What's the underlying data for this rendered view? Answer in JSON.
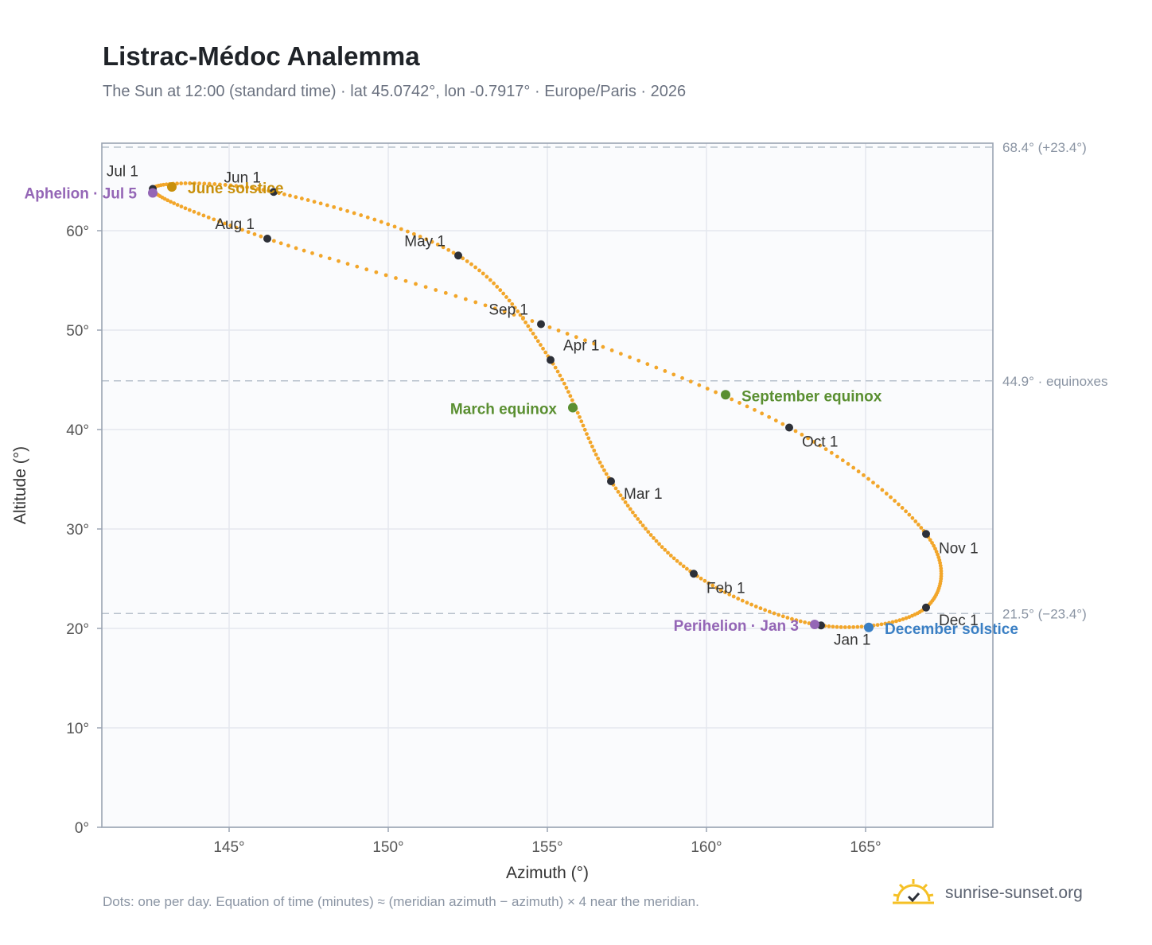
{
  "title": "Listrac-Médoc Analemma",
  "subtitle": "The Sun at 12:00 (standard time) · lat 45.0742°, lon -0.7917° · Europe/Paris · 2026",
  "footnote": "Dots: one per day. Equation of time (minutes) ≈ (meridian azimuth − azimuth) × 4 near the meridian.",
  "brand": {
    "name": "sunrise-sunset.org",
    "logo_icon": "sun-logo-icon"
  },
  "colors": {
    "path": "#f2a62a",
    "month_dot": "#2d3038",
    "equinox": "#5a8f31",
    "june_solstice": "#c8900c",
    "december_solstice": "#3a7fc4",
    "apsis": "#9466b6",
    "plot_bg": "#fafbfd",
    "grid": "#e4e8ee",
    "ref_line": "#b8c1cc"
  },
  "chart_data": {
    "type": "scatter",
    "title": "Listrac-Médoc Analemma",
    "xlabel": "Azimuth (°)",
    "ylabel": "Altitude (°)",
    "xlim": [
      141,
      169
    ],
    "ylim": [
      0,
      68.8
    ],
    "xticks": [
      145,
      150,
      155,
      160,
      165
    ],
    "xtick_labels": [
      "145°",
      "150°",
      "155°",
      "160°",
      "165°"
    ],
    "yticks": [
      0,
      10,
      20,
      30,
      40,
      50,
      60
    ],
    "ytick_labels": [
      "0°",
      "10°",
      "20°",
      "30°",
      "40°",
      "50°",
      "60°"
    ],
    "grid": true,
    "reference_lines": [
      {
        "y": 68.4,
        "label": "68.4° (+23.4°)"
      },
      {
        "y": 44.9,
        "label": "44.9° · equinoxes"
      },
      {
        "y": 21.5,
        "label": "21.5° (−23.4°)"
      }
    ],
    "months": [
      {
        "label": "Jan 1",
        "az": 163.6,
        "alt": 20.3
      },
      {
        "label": "Feb 1",
        "az": 159.6,
        "alt": 25.5
      },
      {
        "label": "Mar 1",
        "az": 157.0,
        "alt": 34.8
      },
      {
        "label": "Apr 1",
        "az": 155.1,
        "alt": 47.0
      },
      {
        "label": "May 1",
        "az": 152.2,
        "alt": 57.5
      },
      {
        "label": "Jun 1",
        "az": 146.4,
        "alt": 63.9
      },
      {
        "label": "Jul 1",
        "az": 142.6,
        "alt": 64.2
      },
      {
        "label": "Aug 1",
        "az": 146.2,
        "alt": 59.2
      },
      {
        "label": "Sep 1",
        "az": 154.8,
        "alt": 50.6
      },
      {
        "label": "Oct 1",
        "az": 162.6,
        "alt": 40.2
      },
      {
        "label": "Nov 1",
        "az": 166.9,
        "alt": 29.5
      },
      {
        "label": "Dec 1",
        "az": 166.9,
        "alt": 22.1
      }
    ],
    "events": [
      {
        "label": "June solstice",
        "az": 143.2,
        "alt": 64.4,
        "kind": "june_solstice"
      },
      {
        "label": "Aphelion · Jul 5",
        "az": 142.6,
        "alt": 63.8,
        "kind": "apsis"
      },
      {
        "label": "March equinox",
        "az": 155.8,
        "alt": 42.2,
        "kind": "equinox"
      },
      {
        "label": "September equinox",
        "az": 160.6,
        "alt": 43.5,
        "kind": "equinox"
      },
      {
        "label": "Perihelion · Jan 3",
        "az": 163.4,
        "alt": 20.4,
        "kind": "apsis"
      },
      {
        "label": "December solstice",
        "az": 165.1,
        "alt": 20.1,
        "kind": "december_solstice"
      }
    ]
  }
}
